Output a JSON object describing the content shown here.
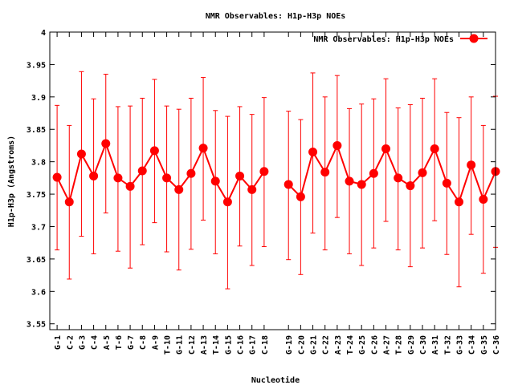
{
  "chart_data": {
    "type": "line",
    "title": "NMR Observables: H1p-H3p NOEs",
    "xlabel": "Nucleotide",
    "ylabel": "H1p-H3p (Angstroms)",
    "ylim": [
      3.541,
      4.0
    ],
    "xlim": [
      -0.6,
      36
    ],
    "yticks": [
      "3.55",
      "3.6",
      "3.65",
      "3.7",
      "3.75",
      "3.8",
      "3.85",
      "3.9",
      "3.95",
      "4"
    ],
    "legend": {
      "label": "NMR Observables: H1p-H3p NOEs",
      "position": "top-right"
    },
    "color": "#ff0000",
    "grid": false,
    "points": [
      {
        "x": 0,
        "label": "G-1",
        "y": 3.776,
        "low": 3.664,
        "high": 3.887
      },
      {
        "x": 1,
        "label": "C-2",
        "y": 3.738,
        "low": 3.619,
        "high": 3.856
      },
      {
        "x": 2,
        "label": "G-3",
        "y": 3.812,
        "low": 3.685,
        "high": 3.939
      },
      {
        "x": 3,
        "label": "C-4",
        "y": 3.778,
        "low": 3.658,
        "high": 3.897
      },
      {
        "x": 4,
        "label": "A-5",
        "y": 3.828,
        "low": 3.721,
        "high": 3.935
      },
      {
        "x": 5,
        "label": "T-6",
        "y": 3.775,
        "low": 3.662,
        "high": 3.885
      },
      {
        "x": 6,
        "label": "G-7",
        "y": 3.762,
        "low": 3.636,
        "high": 3.886
      },
      {
        "x": 7,
        "label": "C-8",
        "y": 3.786,
        "low": 3.672,
        "high": 3.898
      },
      {
        "x": 8,
        "label": "A-9",
        "y": 3.817,
        "low": 3.706,
        "high": 3.927
      },
      {
        "x": 9,
        "label": "T-10",
        "y": 3.775,
        "low": 3.661,
        "high": 3.886
      },
      {
        "x": 10,
        "label": "G-11",
        "y": 3.757,
        "low": 3.633,
        "high": 3.881
      },
      {
        "x": 11,
        "label": "C-12",
        "y": 3.782,
        "low": 3.665,
        "high": 3.898
      },
      {
        "x": 12,
        "label": "A-13",
        "y": 3.821,
        "low": 3.71,
        "high": 3.93
      },
      {
        "x": 13,
        "label": "T-14",
        "y": 3.77,
        "low": 3.658,
        "high": 3.879
      },
      {
        "x": 14,
        "label": "G-15",
        "y": 3.738,
        "low": 3.604,
        "high": 3.87
      },
      {
        "x": 15,
        "label": "C-16",
        "y": 3.778,
        "low": 3.67,
        "high": 3.885
      },
      {
        "x": 16,
        "label": "G-17",
        "y": 3.757,
        "low": 3.64,
        "high": 3.873
      },
      {
        "x": 17,
        "label": "C-18",
        "y": 3.785,
        "low": 3.669,
        "high": 3.899
      },
      {
        "x": 19,
        "label": "G-19",
        "y": 3.765,
        "low": 3.649,
        "high": 3.878
      },
      {
        "x": 20,
        "label": "C-20",
        "y": 3.746,
        "low": 3.626,
        "high": 3.865
      },
      {
        "x": 21,
        "label": "G-21",
        "y": 3.815,
        "low": 3.69,
        "high": 3.937
      },
      {
        "x": 22,
        "label": "C-22",
        "y": 3.784,
        "low": 3.664,
        "high": 3.9
      },
      {
        "x": 23,
        "label": "A-23",
        "y": 3.825,
        "low": 3.714,
        "high": 3.933
      },
      {
        "x": 24,
        "label": "T-24",
        "y": 3.77,
        "low": 3.658,
        "high": 3.882
      },
      {
        "x": 25,
        "label": "G-25",
        "y": 3.765,
        "low": 3.64,
        "high": 3.889
      },
      {
        "x": 26,
        "label": "C-26",
        "y": 3.782,
        "low": 3.667,
        "high": 3.897
      },
      {
        "x": 27,
        "label": "A-27",
        "y": 3.82,
        "low": 3.708,
        "high": 3.928
      },
      {
        "x": 28,
        "label": "T-28",
        "y": 3.775,
        "low": 3.664,
        "high": 3.883
      },
      {
        "x": 29,
        "label": "G-29",
        "y": 3.763,
        "low": 3.638,
        "high": 3.888
      },
      {
        "x": 30,
        "label": "C-30",
        "y": 3.783,
        "low": 3.667,
        "high": 3.898
      },
      {
        "x": 31,
        "label": "A-31",
        "y": 3.82,
        "low": 3.709,
        "high": 3.928
      },
      {
        "x": 32,
        "label": "T-32",
        "y": 3.767,
        "low": 3.657,
        "high": 3.876
      },
      {
        "x": 33,
        "label": "G-33",
        "y": 3.738,
        "low": 3.607,
        "high": 3.868
      },
      {
        "x": 34,
        "label": "C-34",
        "y": 3.795,
        "low": 3.688,
        "high": 3.9
      },
      {
        "x": 35,
        "label": "G-35",
        "y": 3.742,
        "low": 3.628,
        "high": 3.856
      },
      {
        "x": 36,
        "label": "C-36",
        "y": 3.785,
        "low": 3.668,
        "high": 3.901
      }
    ]
  }
}
